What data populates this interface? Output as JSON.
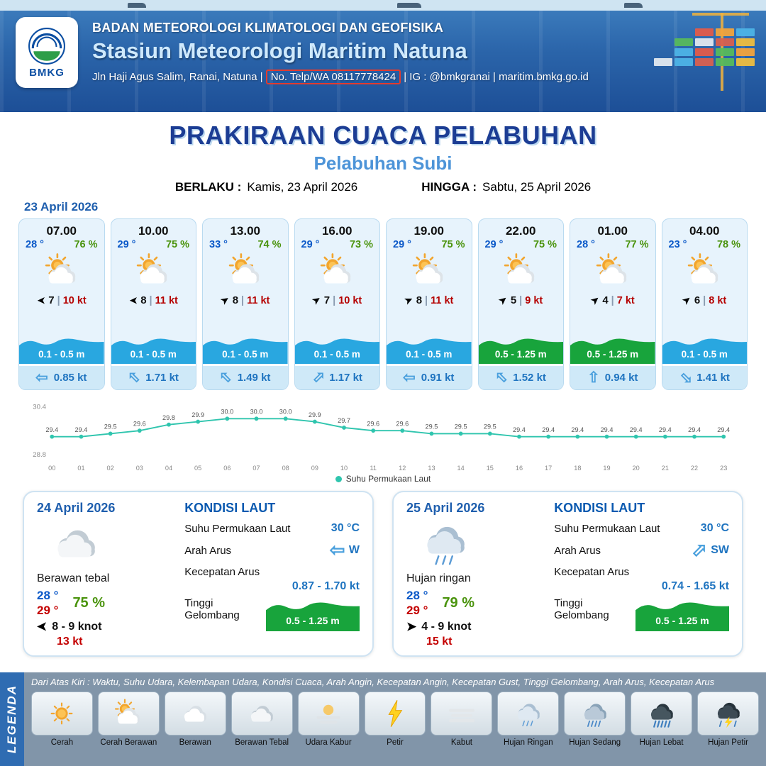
{
  "header": {
    "org": "BADAN METEOROLOGI KLIMATOLOGI DAN GEOFISIKA",
    "station": "Stasiun Meteorologi Maritim Natuna",
    "contact_pre": "Jln Haji Agus Salim, Ranai, Natuna  |",
    "contact_phone": "No. Telp/WA 08117778424",
    "contact_post": "| IG : @bmkgranai | maritim.bmkg.go.id",
    "logo_label": "BMKG"
  },
  "title": {
    "main": "PRAKIRAAN CUACA PELABUHAN",
    "sub": "Pelabuhan Subi",
    "berlaku_label": "BERLAKU :",
    "berlaku_value": "Kamis, 23 April 2026",
    "hingga_label": "HINGGA :",
    "hingga_value": "Sabtu, 25 April 2026"
  },
  "forecast_date": "23 April 2026",
  "ui": {
    "wind_sep": "|"
  },
  "colors": {
    "wave_blue": "#29a7e0",
    "wave_green": "#18a43c",
    "accent_blue": "#1f5fae",
    "temp_blue": "#0a58c8",
    "temp_red": "#c40000",
    "humidity_green": "#4a930d"
  },
  "cards": [
    {
      "time": "07.00",
      "temp": "28 °",
      "rh": "76 %",
      "icon": "cerah-berawan",
      "wind_dir": 180,
      "wind": "7",
      "gust": "10 kt",
      "wave": "0.1 - 0.5 m",
      "wave_color": "blue",
      "cur_dir": -90,
      "cur": "0.85 kt"
    },
    {
      "time": "10.00",
      "temp": "29 °",
      "rh": "75 %",
      "icon": "cerah-berawan",
      "wind_dir": 180,
      "wind": "8",
      "gust": "11 kt",
      "wave": "0.1 - 0.5 m",
      "wave_color": "blue",
      "cur_dir": -45,
      "cur": "1.71 kt"
    },
    {
      "time": "13.00",
      "temp": "33 °",
      "rh": "74 %",
      "icon": "cerah-berawan",
      "wind_dir": -35,
      "wind": "8",
      "gust": "11 kt",
      "wave": "0.1 - 0.5 m",
      "wave_color": "blue",
      "cur_dir": -45,
      "cur": "1.49 kt"
    },
    {
      "time": "16.00",
      "temp": "29 °",
      "rh": "73 %",
      "icon": "cerah-berawan",
      "wind_dir": -35,
      "wind": "7",
      "gust": "10 kt",
      "wave": "0.1 - 0.5 m",
      "wave_color": "blue",
      "cur_dir": 45,
      "cur": "1.17 kt"
    },
    {
      "time": "19.00",
      "temp": "29 °",
      "rh": "75 %",
      "icon": "cerah-berawan",
      "wind_dir": -25,
      "wind": "8",
      "gust": "11 kt",
      "wave": "0.1 - 0.5 m",
      "wave_color": "blue",
      "cur_dir": -90,
      "cur": "0.91 kt"
    },
    {
      "time": "22.00",
      "temp": "29 °",
      "rh": "75 %",
      "icon": "cerah-berawan",
      "wind_dir": -40,
      "wind": "5",
      "gust": "9 kt",
      "wave": "0.5 - 1.25 m",
      "wave_color": "green",
      "cur_dir": -45,
      "cur": "1.52 kt"
    },
    {
      "time": "01.00",
      "temp": "28 °",
      "rh": "77 %",
      "icon": "cerah-berawan",
      "wind_dir": -40,
      "wind": "4",
      "gust": "7 kt",
      "wave": "0.5 - 1.25 m",
      "wave_color": "green",
      "cur_dir": 0,
      "cur": "0.94 kt"
    },
    {
      "time": "04.00",
      "temp": "23 °",
      "rh": "78 %",
      "icon": "cerah-berawan",
      "wind_dir": -40,
      "wind": "6",
      "gust": "8 kt",
      "wave": "0.1 - 0.5 m",
      "wave_color": "blue",
      "cur_dir": 135,
      "cur": "1.41 kt"
    }
  ],
  "chart_data": {
    "type": "line",
    "title": "",
    "x": [
      "00",
      "01",
      "02",
      "03",
      "04",
      "05",
      "06",
      "07",
      "08",
      "09",
      "10",
      "11",
      "12",
      "13",
      "14",
      "15",
      "16",
      "17",
      "18",
      "19",
      "20",
      "21",
      "22",
      "23"
    ],
    "series": [
      {
        "name": "Suhu Permukaan Laut",
        "values": [
          29.4,
          29.4,
          29.5,
          29.6,
          29.8,
          29.9,
          30.0,
          30.0,
          30.0,
          29.9,
          29.7,
          29.6,
          29.6,
          29.5,
          29.5,
          29.5,
          29.4,
          29.4,
          29.4,
          29.4,
          29.4,
          29.4,
          29.4,
          29.4
        ]
      }
    ],
    "ylim": [
      28.8,
      30.4
    ],
    "line_color": "#2fc5ae",
    "legend": "Suhu Permukaan Laut",
    "legend_position": "bottom",
    "grid": false
  },
  "days": [
    {
      "date": "24 April 2026",
      "icon": "berawan-tebal",
      "condition": "Berawan tebal",
      "temp_min": "28 °",
      "temp_max": "29 °",
      "rh": "75 %",
      "wind_dir": 180,
      "wind_range": "8  - 9 knot",
      "gust": "13 kt",
      "sea": {
        "title": "KONDISI LAUT",
        "sst_label": "Suhu Permukaan Laut",
        "sst": "30 °C",
        "current_dir_label": "Arah Arus",
        "current_dir": "W",
        "current_dir_deg": -90,
        "current_speed_label": "Kecepatan Arus",
        "current_speed": "0.87 - 1.70 kt",
        "wave_label": "Tinggi Gelombang",
        "wave": "0.5 - 1.25 m"
      }
    },
    {
      "date": "25 April 2026",
      "icon": "hujan-ringan",
      "condition": "Hujan ringan",
      "temp_min": "28 °",
      "temp_max": "29 °",
      "rh": "79 %",
      "wind_dir": 0,
      "wind_range": "4  - 9 knot",
      "gust": "15 kt",
      "sea": {
        "title": "KONDISI LAUT",
        "sst_label": "Suhu Permukaan Laut",
        "sst": "30 °C",
        "current_dir_label": "Arah Arus",
        "current_dir": "SW",
        "current_dir_deg": 45,
        "current_speed_label": "Kecepatan Arus",
        "current_speed": "0.74 - 1.65 kt",
        "wave_label": "Tinggi Gelombang",
        "wave": "0.5 - 1.25 m"
      }
    }
  ],
  "legend": {
    "side_label": "LEGENDA",
    "note": "Dari Atas Kiri : Waktu, Suhu Udara, Kelembapan Udara, Kondisi Cuaca, Arah Angin, Kecepatan Angin, Kecepatan Gust, Tinggi Gelombang, Arah Arus, Kecepatan Arus",
    "items": [
      {
        "label": "Cerah",
        "icon": "cerah"
      },
      {
        "label": "Cerah Berawan",
        "icon": "cerah-berawan"
      },
      {
        "label": "Berawan",
        "icon": "berawan"
      },
      {
        "label": "Berawan Tebal",
        "icon": "berawan-tebal"
      },
      {
        "label": "Udara Kabur",
        "icon": "udara-kabur"
      },
      {
        "label": "Petir",
        "icon": "petir"
      },
      {
        "label": "Kabut",
        "icon": "kabut"
      },
      {
        "label": "Hujan Ringan",
        "icon": "hujan-ringan"
      },
      {
        "label": "Hujan Sedang",
        "icon": "hujan-sedang"
      },
      {
        "label": "Hujan Lebat",
        "icon": "hujan-lebat"
      },
      {
        "label": "Hujan Petir",
        "icon": "hujan-petir"
      }
    ]
  }
}
